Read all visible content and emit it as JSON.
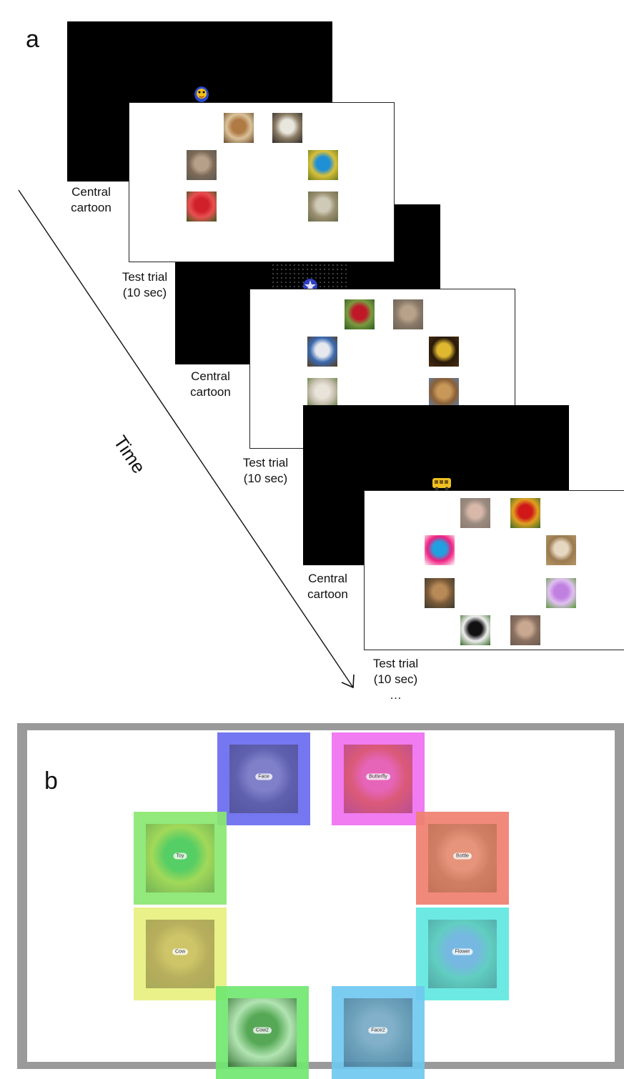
{
  "panel_a": {
    "letter": "a",
    "time_label": "Time",
    "ellipsis": "…",
    "cartoon_label_1": "Central",
    "cartoon_label_2": "cartoon",
    "test_label_1": "Test trial",
    "test_label_2": "(10 sec)",
    "trials": [
      {
        "cartoon_icon": "yellow-chick-cartoon-icon",
        "stimuli": [
          {
            "name": "highland-cow-photo",
            "colors": [
              "#6b4a2a",
              "#b07a45",
              "#d9c29a"
            ]
          },
          {
            "name": "milk-bottle-photo",
            "colors": [
              "#2d2a26",
              "#e8e6dd",
              "#8a7b64"
            ]
          },
          {
            "name": "monkey-face-photo",
            "colors": [
              "#5a5a52",
              "#b7a089",
              "#7d6a58"
            ]
          },
          {
            "name": "blue-butterfly-photo",
            "colors": [
              "#6b7a1e",
              "#1f8fd6",
              "#d8c03a"
            ]
          },
          {
            "name": "red-flower-photo",
            "colors": [
              "#3a5a20",
              "#d0202a",
              "#e85050"
            ]
          },
          {
            "name": "sheep-photo",
            "colors": [
              "#6a6a4a",
              "#cfcab8",
              "#9a9070"
            ]
          }
        ]
      },
      {
        "cartoon_icon": "blue-star-cartoon-icon",
        "stimuli": [
          {
            "name": "red-flower-photo",
            "colors": [
              "#2e5a22",
              "#c01828",
              "#7a9a40"
            ]
          },
          {
            "name": "monkey-face-photo",
            "colors": [
              "#6a6258",
              "#b8a28a",
              "#8a7a68"
            ]
          },
          {
            "name": "milk-bottle-photo",
            "colors": [
              "#5a3a18",
              "#e6e8ee",
              "#3a6ab0"
            ]
          },
          {
            "name": "swallowtail-butterfly-photo",
            "colors": [
              "#4a2e12",
              "#e0b830",
              "#2a1a0a"
            ]
          },
          {
            "name": "lamb-photo",
            "colors": [
              "#5a7a3a",
              "#e8e4da",
              "#c8c0b0"
            ]
          },
          {
            "name": "cow-photo",
            "colors": [
              "#5a82b8",
              "#c89858",
              "#8a6038"
            ]
          }
        ]
      },
      {
        "cartoon_icon": "yellow-bus-cartoon-icon",
        "stimuli": [
          {
            "name": "monkey-face-photo",
            "colors": [
              "#8a7a70",
              "#d8b8a8",
              "#9a8a80"
            ]
          },
          {
            "name": "butterfly-flower-photo",
            "colors": [
              "#3a6a2a",
              "#d01818",
              "#e0a020"
            ]
          },
          {
            "name": "rubber-ball-toy-photo",
            "colors": [
              "#ffffff",
              "#20a0e0",
              "#f02080"
            ]
          },
          {
            "name": "plastic-bottle-photo",
            "colors": [
              "#b89868",
              "#e6d8c0",
              "#9a7a50"
            ]
          },
          {
            "name": "cow-photo",
            "colors": [
              "#3a3a30",
              "#b88a58",
              "#7a5a38"
            ]
          },
          {
            "name": "purple-flower-photo",
            "colors": [
              "#5a9a3a",
              "#c080e0",
              "#e0c0f0"
            ]
          },
          {
            "name": "black-white-cow-photo",
            "colors": [
              "#3a6a2a",
              "#111111",
              "#eeeeee"
            ]
          },
          {
            "name": "monkey-face-photo",
            "colors": [
              "#6a5a50",
              "#c8a890",
              "#8a7060"
            ]
          }
        ]
      }
    ]
  },
  "panel_b": {
    "letter": "b",
    "aois": [
      {
        "key": "face",
        "label": "Face",
        "color": "#6a6cf0",
        "photo": [
          "#3a3a7a",
          "#7a7ab8",
          "#4a4a90"
        ]
      },
      {
        "key": "butterfly",
        "label": "Butterfly",
        "color": "#f070f0",
        "photo": [
          "#a0306a",
          "#e050a0",
          "#d04040"
        ]
      },
      {
        "key": "toy",
        "label": "Toy",
        "color": "#8ae870",
        "photo": [
          "#5a9a3a",
          "#30c050",
          "#a0d040"
        ]
      },
      {
        "key": "bottle",
        "label": "Bottle",
        "color": "#f08070",
        "photo": [
          "#b06040",
          "#e09070",
          "#c07050"
        ]
      },
      {
        "key": "cow",
        "label": "Cow",
        "color": "#e8f080",
        "photo": [
          "#8a8a3a",
          "#c0b050",
          "#a09040"
        ]
      },
      {
        "key": "flower",
        "label": "Flower",
        "color": "#60e8e0",
        "photo": [
          "#3a8a8a",
          "#70a0e0",
          "#50c0b0"
        ]
      },
      {
        "key": "cow2",
        "label": "Cow2",
        "color": "#70e870",
        "photo": [
          "#1a4a1a",
          "#3a8a3a",
          "#c0e0c0"
        ]
      },
      {
        "key": "face2",
        "label": "Face2",
        "color": "#70c8f0",
        "photo": [
          "#3a6a8a",
          "#7aa0b8",
          "#5a8aa0"
        ]
      }
    ]
  }
}
